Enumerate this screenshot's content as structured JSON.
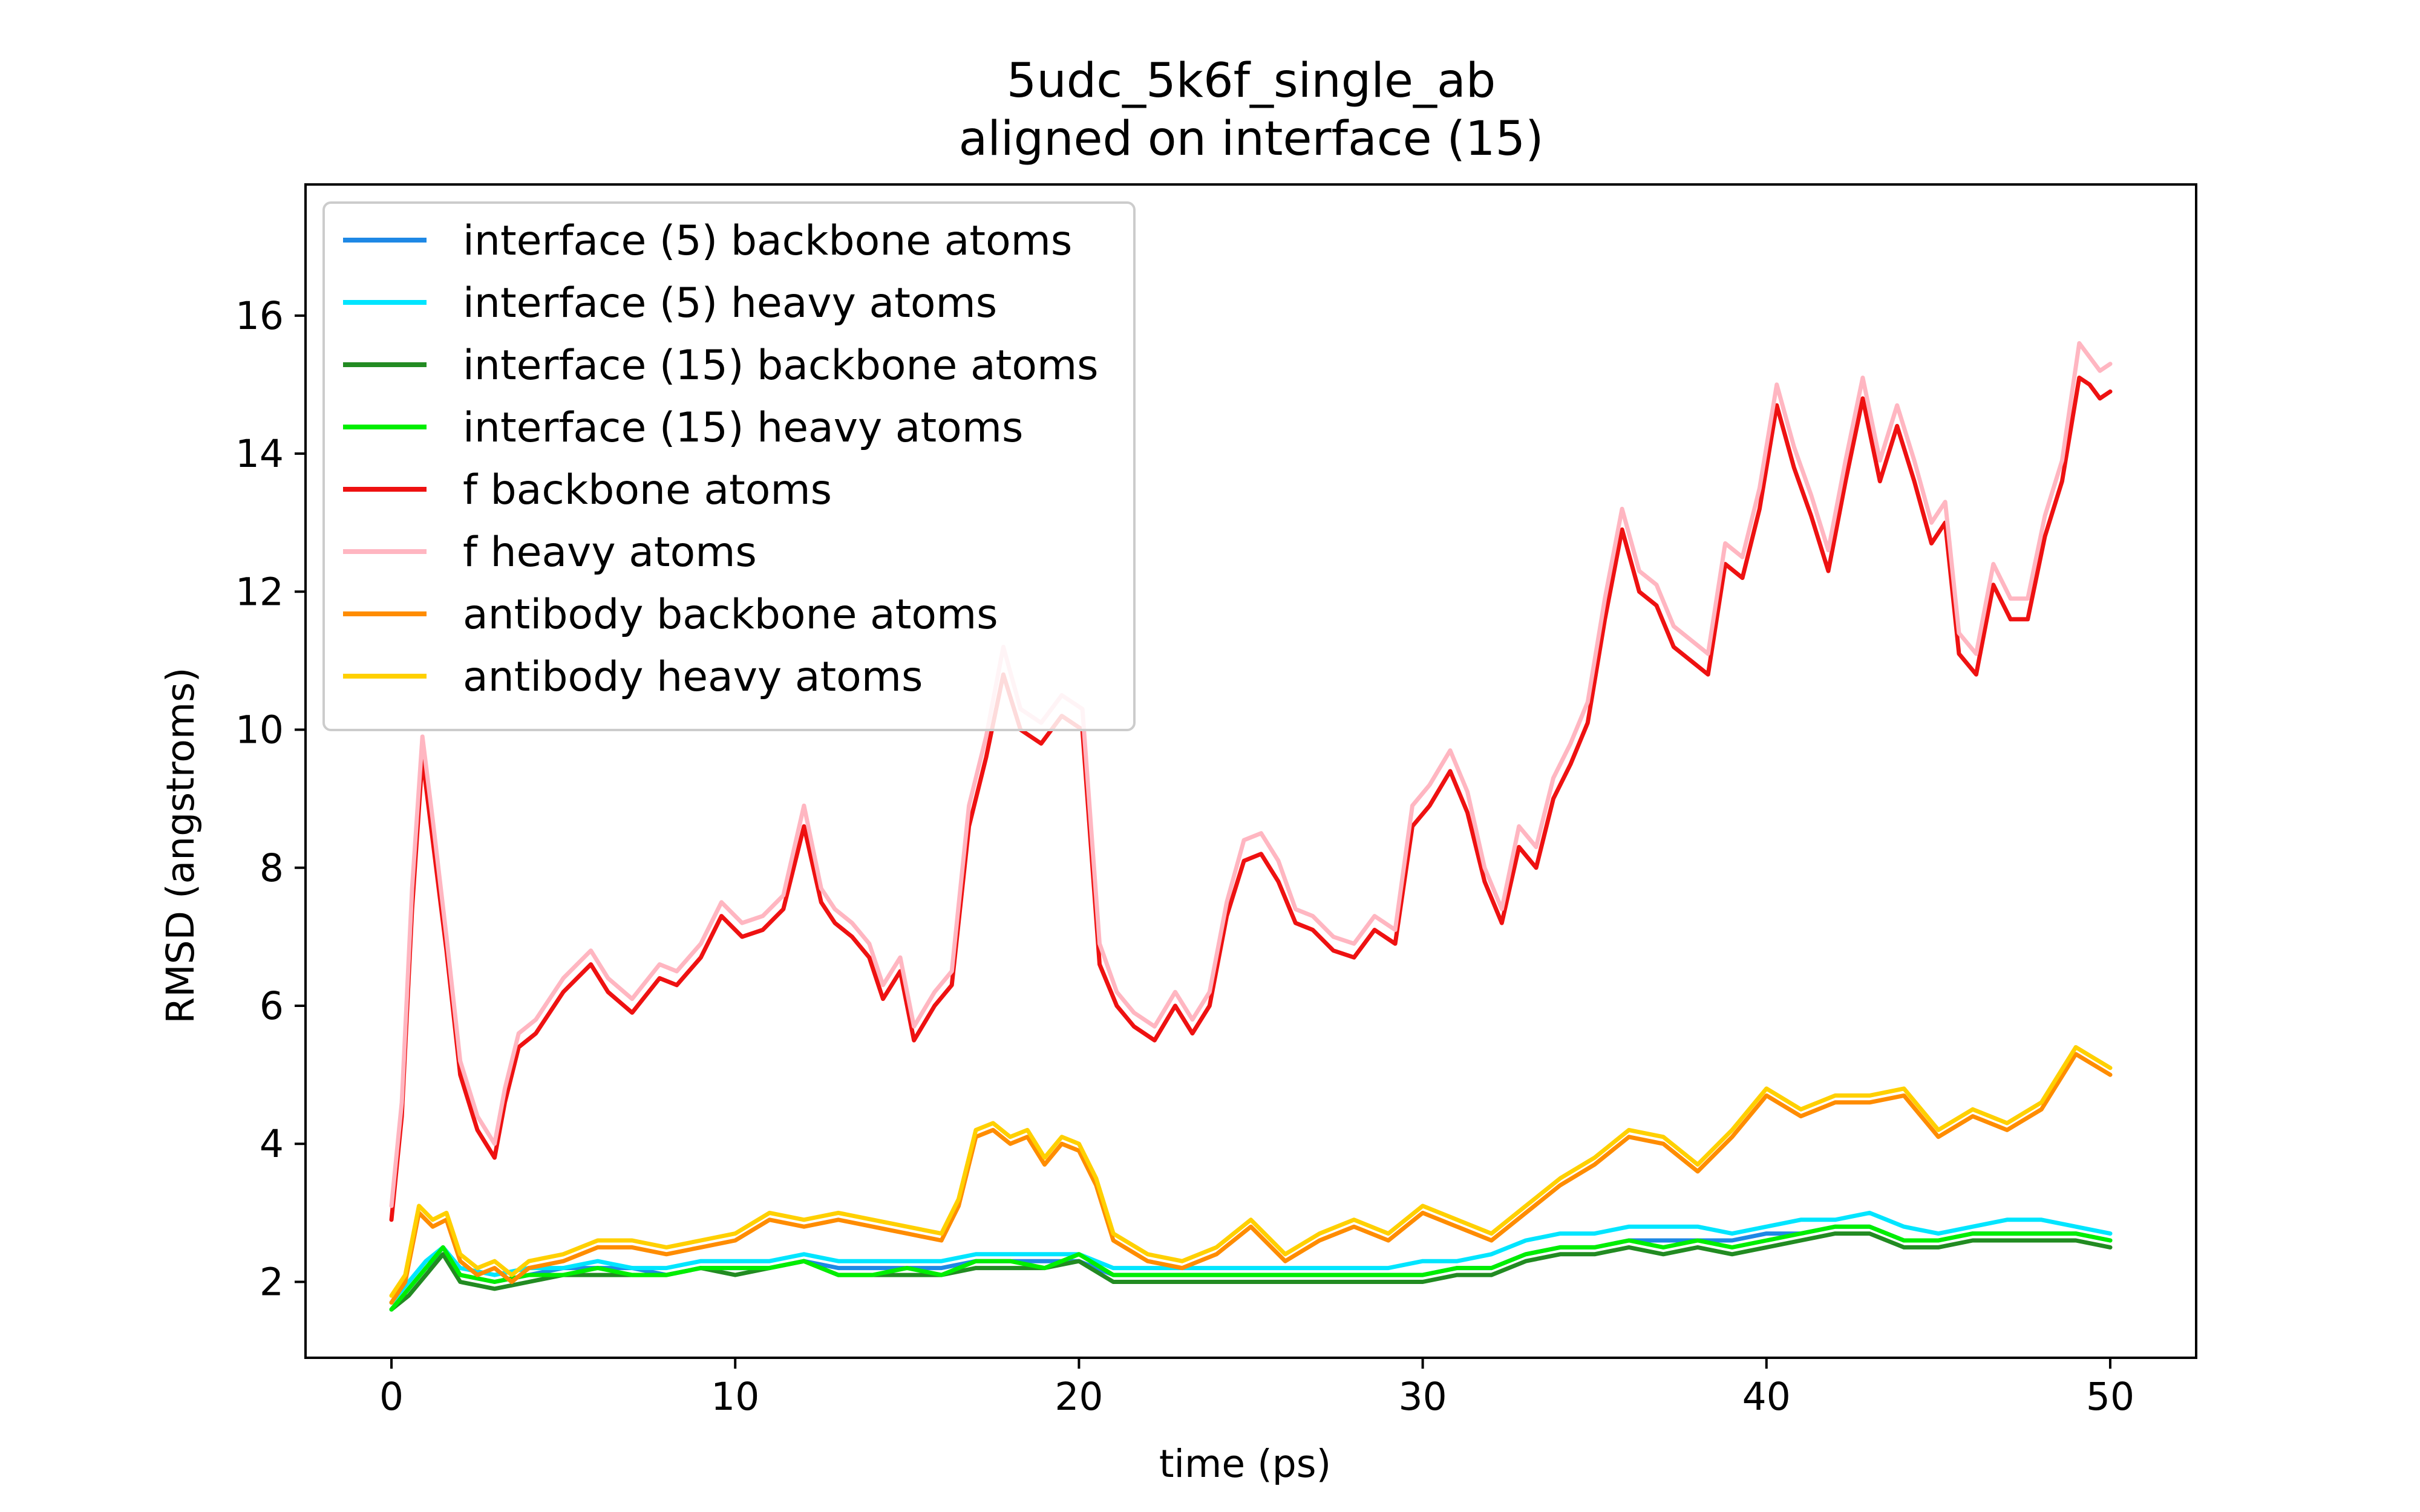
{
  "chart_data": {
    "type": "line",
    "title": "5udc_5k6f_single_ab",
    "subtitle": "aligned on interface (15)",
    "xlabel": "time (ps)",
    "ylabel": "RMSD (angstroms)",
    "xlim": [
      -2.5,
      52.5
    ],
    "ylim": [
      0.9,
      17.9
    ],
    "xticks": [
      0,
      10,
      20,
      30,
      40,
      50
    ],
    "yticks": [
      2,
      4,
      6,
      8,
      10,
      12,
      14,
      16
    ],
    "grid": false,
    "legend_position": "upper-left",
    "series": [
      {
        "name": "interface (5) backbone atoms",
        "color": "#1e88e5",
        "x": [
          0,
          0.5,
          1,
          1.5,
          2,
          3,
          4,
          5,
          6,
          7,
          8,
          9,
          10,
          11,
          12,
          13,
          14,
          15,
          16,
          17,
          18,
          19,
          20,
          21,
          22,
          23,
          24,
          25,
          26,
          27,
          28,
          29,
          30,
          31,
          32,
          33,
          34,
          35,
          36,
          37,
          38,
          39,
          40,
          41,
          42,
          43,
          44,
          45,
          46,
          47,
          48,
          49,
          50
        ],
        "y": [
          1.6,
          1.9,
          2.2,
          2.4,
          2.1,
          2.0,
          2.1,
          2.2,
          2.2,
          2.2,
          2.1,
          2.2,
          2.2,
          2.2,
          2.3,
          2.2,
          2.2,
          2.2,
          2.2,
          2.3,
          2.3,
          2.3,
          2.3,
          2.1,
          2.1,
          2.1,
          2.1,
          2.1,
          2.1,
          2.1,
          2.1,
          2.1,
          2.1,
          2.2,
          2.2,
          2.4,
          2.5,
          2.5,
          2.6,
          2.6,
          2.6,
          2.6,
          2.7,
          2.7,
          2.8,
          2.8,
          2.6,
          2.6,
          2.7,
          2.7,
          2.7,
          2.7,
          2.6
        ]
      },
      {
        "name": "interface (5) heavy atoms",
        "color": "#00e5ff",
        "x": [
          0,
          0.5,
          1,
          1.5,
          2,
          3,
          4,
          5,
          6,
          7,
          8,
          9,
          10,
          11,
          12,
          13,
          14,
          15,
          16,
          17,
          18,
          19,
          20,
          21,
          22,
          23,
          24,
          25,
          26,
          27,
          28,
          29,
          30,
          31,
          32,
          33,
          34,
          35,
          36,
          37,
          38,
          39,
          40,
          41,
          42,
          43,
          44,
          45,
          46,
          47,
          48,
          49,
          50
        ],
        "y": [
          1.7,
          2.0,
          2.3,
          2.5,
          2.2,
          2.1,
          2.2,
          2.2,
          2.3,
          2.2,
          2.2,
          2.3,
          2.3,
          2.3,
          2.4,
          2.3,
          2.3,
          2.3,
          2.3,
          2.4,
          2.4,
          2.4,
          2.4,
          2.2,
          2.2,
          2.2,
          2.2,
          2.2,
          2.2,
          2.2,
          2.2,
          2.2,
          2.3,
          2.3,
          2.4,
          2.6,
          2.7,
          2.7,
          2.8,
          2.8,
          2.8,
          2.7,
          2.8,
          2.9,
          2.9,
          3.0,
          2.8,
          2.7,
          2.8,
          2.9,
          2.9,
          2.8,
          2.7
        ]
      },
      {
        "name": "interface (15) backbone atoms",
        "color": "#228b22",
        "x": [
          0,
          0.5,
          1,
          1.5,
          2,
          3,
          4,
          5,
          6,
          7,
          8,
          9,
          10,
          11,
          12,
          13,
          14,
          15,
          16,
          17,
          18,
          19,
          20,
          21,
          22,
          23,
          24,
          25,
          26,
          27,
          28,
          29,
          30,
          31,
          32,
          33,
          34,
          35,
          36,
          37,
          38,
          39,
          40,
          41,
          42,
          43,
          44,
          45,
          46,
          47,
          48,
          49,
          50
        ],
        "y": [
          1.6,
          1.8,
          2.1,
          2.4,
          2.0,
          1.9,
          2.0,
          2.1,
          2.1,
          2.1,
          2.1,
          2.2,
          2.1,
          2.2,
          2.3,
          2.1,
          2.1,
          2.1,
          2.1,
          2.2,
          2.2,
          2.2,
          2.3,
          2.0,
          2.0,
          2.0,
          2.0,
          2.0,
          2.0,
          2.0,
          2.0,
          2.0,
          2.0,
          2.1,
          2.1,
          2.3,
          2.4,
          2.4,
          2.5,
          2.4,
          2.5,
          2.4,
          2.5,
          2.6,
          2.7,
          2.7,
          2.5,
          2.5,
          2.6,
          2.6,
          2.6,
          2.6,
          2.5
        ]
      },
      {
        "name": "interface (15) heavy atoms",
        "color": "#00ee00",
        "x": [
          0,
          0.5,
          1,
          1.5,
          2,
          3,
          4,
          5,
          6,
          7,
          8,
          9,
          10,
          11,
          12,
          13,
          14,
          15,
          16,
          17,
          18,
          19,
          20,
          21,
          22,
          23,
          24,
          25,
          26,
          27,
          28,
          29,
          30,
          31,
          32,
          33,
          34,
          35,
          36,
          37,
          38,
          39,
          40,
          41,
          42,
          43,
          44,
          45,
          46,
          47,
          48,
          49,
          50
        ],
        "y": [
          1.6,
          1.9,
          2.2,
          2.5,
          2.1,
          2.0,
          2.1,
          2.1,
          2.2,
          2.1,
          2.1,
          2.2,
          2.2,
          2.2,
          2.3,
          2.1,
          2.1,
          2.2,
          2.1,
          2.3,
          2.3,
          2.2,
          2.4,
          2.1,
          2.1,
          2.1,
          2.1,
          2.1,
          2.1,
          2.1,
          2.1,
          2.1,
          2.1,
          2.2,
          2.2,
          2.4,
          2.5,
          2.5,
          2.6,
          2.5,
          2.6,
          2.5,
          2.6,
          2.7,
          2.8,
          2.8,
          2.6,
          2.6,
          2.7,
          2.7,
          2.7,
          2.7,
          2.6
        ]
      },
      {
        "name": "f backbone atoms",
        "color": "#ee1111",
        "x": [
          0,
          0.3,
          0.6,
          0.9,
          1.2,
          1.6,
          2,
          2.5,
          3,
          3.3,
          3.7,
          4.2,
          5,
          5.8,
          6.3,
          7,
          7.8,
          8.3,
          9,
          9.6,
          10.2,
          10.8,
          11.4,
          12,
          12.5,
          12.9,
          13.4,
          13.9,
          14.3,
          14.8,
          15.2,
          15.8,
          16.3,
          16.8,
          17.3,
          17.8,
          18.3,
          18.9,
          19.5,
          20.1,
          20.6,
          21.1,
          21.6,
          22.2,
          22.8,
          23.3,
          23.8,
          24.3,
          24.8,
          25.3,
          25.8,
          26.3,
          26.8,
          27.4,
          28,
          28.6,
          29.2,
          29.7,
          30.2,
          30.8,
          31.3,
          31.8,
          32.3,
          32.8,
          33.3,
          33.8,
          34.3,
          34.8,
          35.3,
          35.8,
          36.3,
          36.8,
          37.3,
          37.8,
          38.3,
          38.8,
          39.3,
          39.8,
          40.3,
          40.8,
          41.3,
          41.8,
          42.3,
          42.8,
          43.3,
          43.8,
          44.3,
          44.8,
          45.2,
          45.6,
          46.1,
          46.6,
          47.1,
          47.6,
          48.1,
          48.6,
          49.1,
          49.4,
          49.7,
          50
        ],
        "y": [
          2.9,
          4.4,
          7.4,
          9.6,
          8.4,
          6.8,
          5.0,
          4.2,
          3.8,
          4.6,
          5.4,
          5.6,
          6.2,
          6.6,
          6.2,
          5.9,
          6.4,
          6.3,
          6.7,
          7.3,
          7.0,
          7.1,
          7.4,
          8.6,
          7.5,
          7.2,
          7.0,
          6.7,
          6.1,
          6.5,
          5.5,
          6.0,
          6.3,
          8.6,
          9.6,
          10.8,
          10.0,
          9.8,
          10.2,
          10.0,
          6.6,
          6.0,
          5.7,
          5.5,
          6.0,
          5.6,
          6.0,
          7.3,
          8.1,
          8.2,
          7.8,
          7.2,
          7.1,
          6.8,
          6.7,
          7.1,
          6.9,
          8.6,
          8.9,
          9.4,
          8.8,
          7.8,
          7.2,
          8.3,
          8.0,
          9.0,
          9.5,
          10.1,
          11.6,
          12.9,
          12.0,
          11.8,
          11.2,
          11.0,
          10.8,
          12.4,
          12.2,
          13.2,
          14.7,
          13.8,
          13.1,
          12.3,
          13.6,
          14.8,
          13.6,
          14.4,
          13.6,
          12.7,
          13.0,
          11.1,
          10.8,
          12.1,
          11.6,
          11.6,
          12.8,
          13.6,
          15.1,
          15.0,
          14.8,
          14.9
        ]
      },
      {
        "name": "f heavy atoms",
        "color": "#ffb6c1",
        "x": [
          0,
          0.3,
          0.6,
          0.9,
          1.2,
          1.6,
          2,
          2.5,
          3,
          3.3,
          3.7,
          4.2,
          5,
          5.8,
          6.3,
          7,
          7.8,
          8.3,
          9,
          9.6,
          10.2,
          10.8,
          11.4,
          12,
          12.5,
          12.9,
          13.4,
          13.9,
          14.3,
          14.8,
          15.2,
          15.8,
          16.3,
          16.8,
          17.3,
          17.8,
          18.3,
          18.9,
          19.5,
          20.1,
          20.6,
          21.1,
          21.6,
          22.2,
          22.8,
          23.3,
          23.8,
          24.3,
          24.8,
          25.3,
          25.8,
          26.3,
          26.8,
          27.4,
          28,
          28.6,
          29.2,
          29.7,
          30.2,
          30.8,
          31.3,
          31.8,
          32.3,
          32.8,
          33.3,
          33.8,
          34.3,
          34.8,
          35.3,
          35.8,
          36.3,
          36.8,
          37.3,
          37.8,
          38.3,
          38.8,
          39.3,
          39.8,
          40.3,
          40.8,
          41.3,
          41.8,
          42.3,
          42.8,
          43.3,
          43.8,
          44.3,
          44.8,
          45.2,
          45.6,
          46.1,
          46.6,
          47.1,
          47.6,
          48.1,
          48.6,
          49.1,
          49.4,
          49.7,
          50
        ],
        "y": [
          3.1,
          4.6,
          7.7,
          9.9,
          8.7,
          7.0,
          5.2,
          4.4,
          4.0,
          4.8,
          5.6,
          5.8,
          6.4,
          6.8,
          6.4,
          6.1,
          6.6,
          6.5,
          6.9,
          7.5,
          7.2,
          7.3,
          7.6,
          8.9,
          7.7,
          7.4,
          7.2,
          6.9,
          6.3,
          6.7,
          5.7,
          6.2,
          6.5,
          8.9,
          9.9,
          11.2,
          10.3,
          10.1,
          10.5,
          10.3,
          6.9,
          6.2,
          5.9,
          5.7,
          6.2,
          5.8,
          6.2,
          7.5,
          8.4,
          8.5,
          8.1,
          7.4,
          7.3,
          7.0,
          6.9,
          7.3,
          7.1,
          8.9,
          9.2,
          9.7,
          9.1,
          8.0,
          7.4,
          8.6,
          8.3,
          9.3,
          9.8,
          10.4,
          11.9,
          13.2,
          12.3,
          12.1,
          11.5,
          11.3,
          11.1,
          12.7,
          12.5,
          13.5,
          15.0,
          14.1,
          13.4,
          12.6,
          13.9,
          15.1,
          13.9,
          14.7,
          13.9,
          13.0,
          13.3,
          11.4,
          11.1,
          12.4,
          11.9,
          11.9,
          13.1,
          13.9,
          15.6,
          15.4,
          15.2,
          15.3
        ]
      },
      {
        "name": "antibody backbone atoms",
        "color": "#ff8c00",
        "x": [
          0,
          0.4,
          0.8,
          1.2,
          1.6,
          2,
          2.5,
          3,
          3.5,
          4,
          5,
          6,
          7,
          8,
          9,
          10,
          11,
          12,
          13,
          14,
          15,
          16,
          16.5,
          17,
          17.5,
          18,
          18.5,
          19,
          19.5,
          20,
          20.5,
          21,
          22,
          23,
          24,
          25,
          26,
          27,
          28,
          29,
          30,
          31,
          32,
          33,
          34,
          35,
          36,
          37,
          38,
          39,
          40,
          41,
          42,
          43,
          44,
          45,
          46,
          47,
          48,
          49,
          50
        ],
        "y": [
          1.7,
          2.0,
          3.0,
          2.8,
          2.9,
          2.3,
          2.1,
          2.2,
          2.0,
          2.2,
          2.3,
          2.5,
          2.5,
          2.4,
          2.5,
          2.6,
          2.9,
          2.8,
          2.9,
          2.8,
          2.7,
          2.6,
          3.1,
          4.1,
          4.2,
          4.0,
          4.1,
          3.7,
          4.0,
          3.9,
          3.4,
          2.6,
          2.3,
          2.2,
          2.4,
          2.8,
          2.3,
          2.6,
          2.8,
          2.6,
          3.0,
          2.8,
          2.6,
          3.0,
          3.4,
          3.7,
          4.1,
          4.0,
          3.6,
          4.1,
          4.7,
          4.4,
          4.6,
          4.6,
          4.7,
          4.1,
          4.4,
          4.2,
          4.5,
          5.3,
          5.0
        ]
      },
      {
        "name": "antibody heavy atoms",
        "color": "#ffd000",
        "x": [
          0,
          0.4,
          0.8,
          1.2,
          1.6,
          2,
          2.5,
          3,
          3.5,
          4,
          5,
          6,
          7,
          8,
          9,
          10,
          11,
          12,
          13,
          14,
          15,
          16,
          16.5,
          17,
          17.5,
          18,
          18.5,
          19,
          19.5,
          20,
          20.5,
          21,
          22,
          23,
          24,
          25,
          26,
          27,
          28,
          29,
          30,
          31,
          32,
          33,
          34,
          35,
          36,
          37,
          38,
          39,
          40,
          41,
          42,
          43,
          44,
          45,
          46,
          47,
          48,
          49,
          50
        ],
        "y": [
          1.8,
          2.1,
          3.1,
          2.9,
          3.0,
          2.4,
          2.2,
          2.3,
          2.1,
          2.3,
          2.4,
          2.6,
          2.6,
          2.5,
          2.6,
          2.7,
          3.0,
          2.9,
          3.0,
          2.9,
          2.8,
          2.7,
          3.2,
          4.2,
          4.3,
          4.1,
          4.2,
          3.8,
          4.1,
          4.0,
          3.5,
          2.7,
          2.4,
          2.3,
          2.5,
          2.9,
          2.4,
          2.7,
          2.9,
          2.7,
          3.1,
          2.9,
          2.7,
          3.1,
          3.5,
          3.8,
          4.2,
          4.1,
          3.7,
          4.2,
          4.8,
          4.5,
          4.7,
          4.7,
          4.8,
          4.2,
          4.5,
          4.3,
          4.6,
          5.4,
          5.1
        ]
      }
    ]
  }
}
